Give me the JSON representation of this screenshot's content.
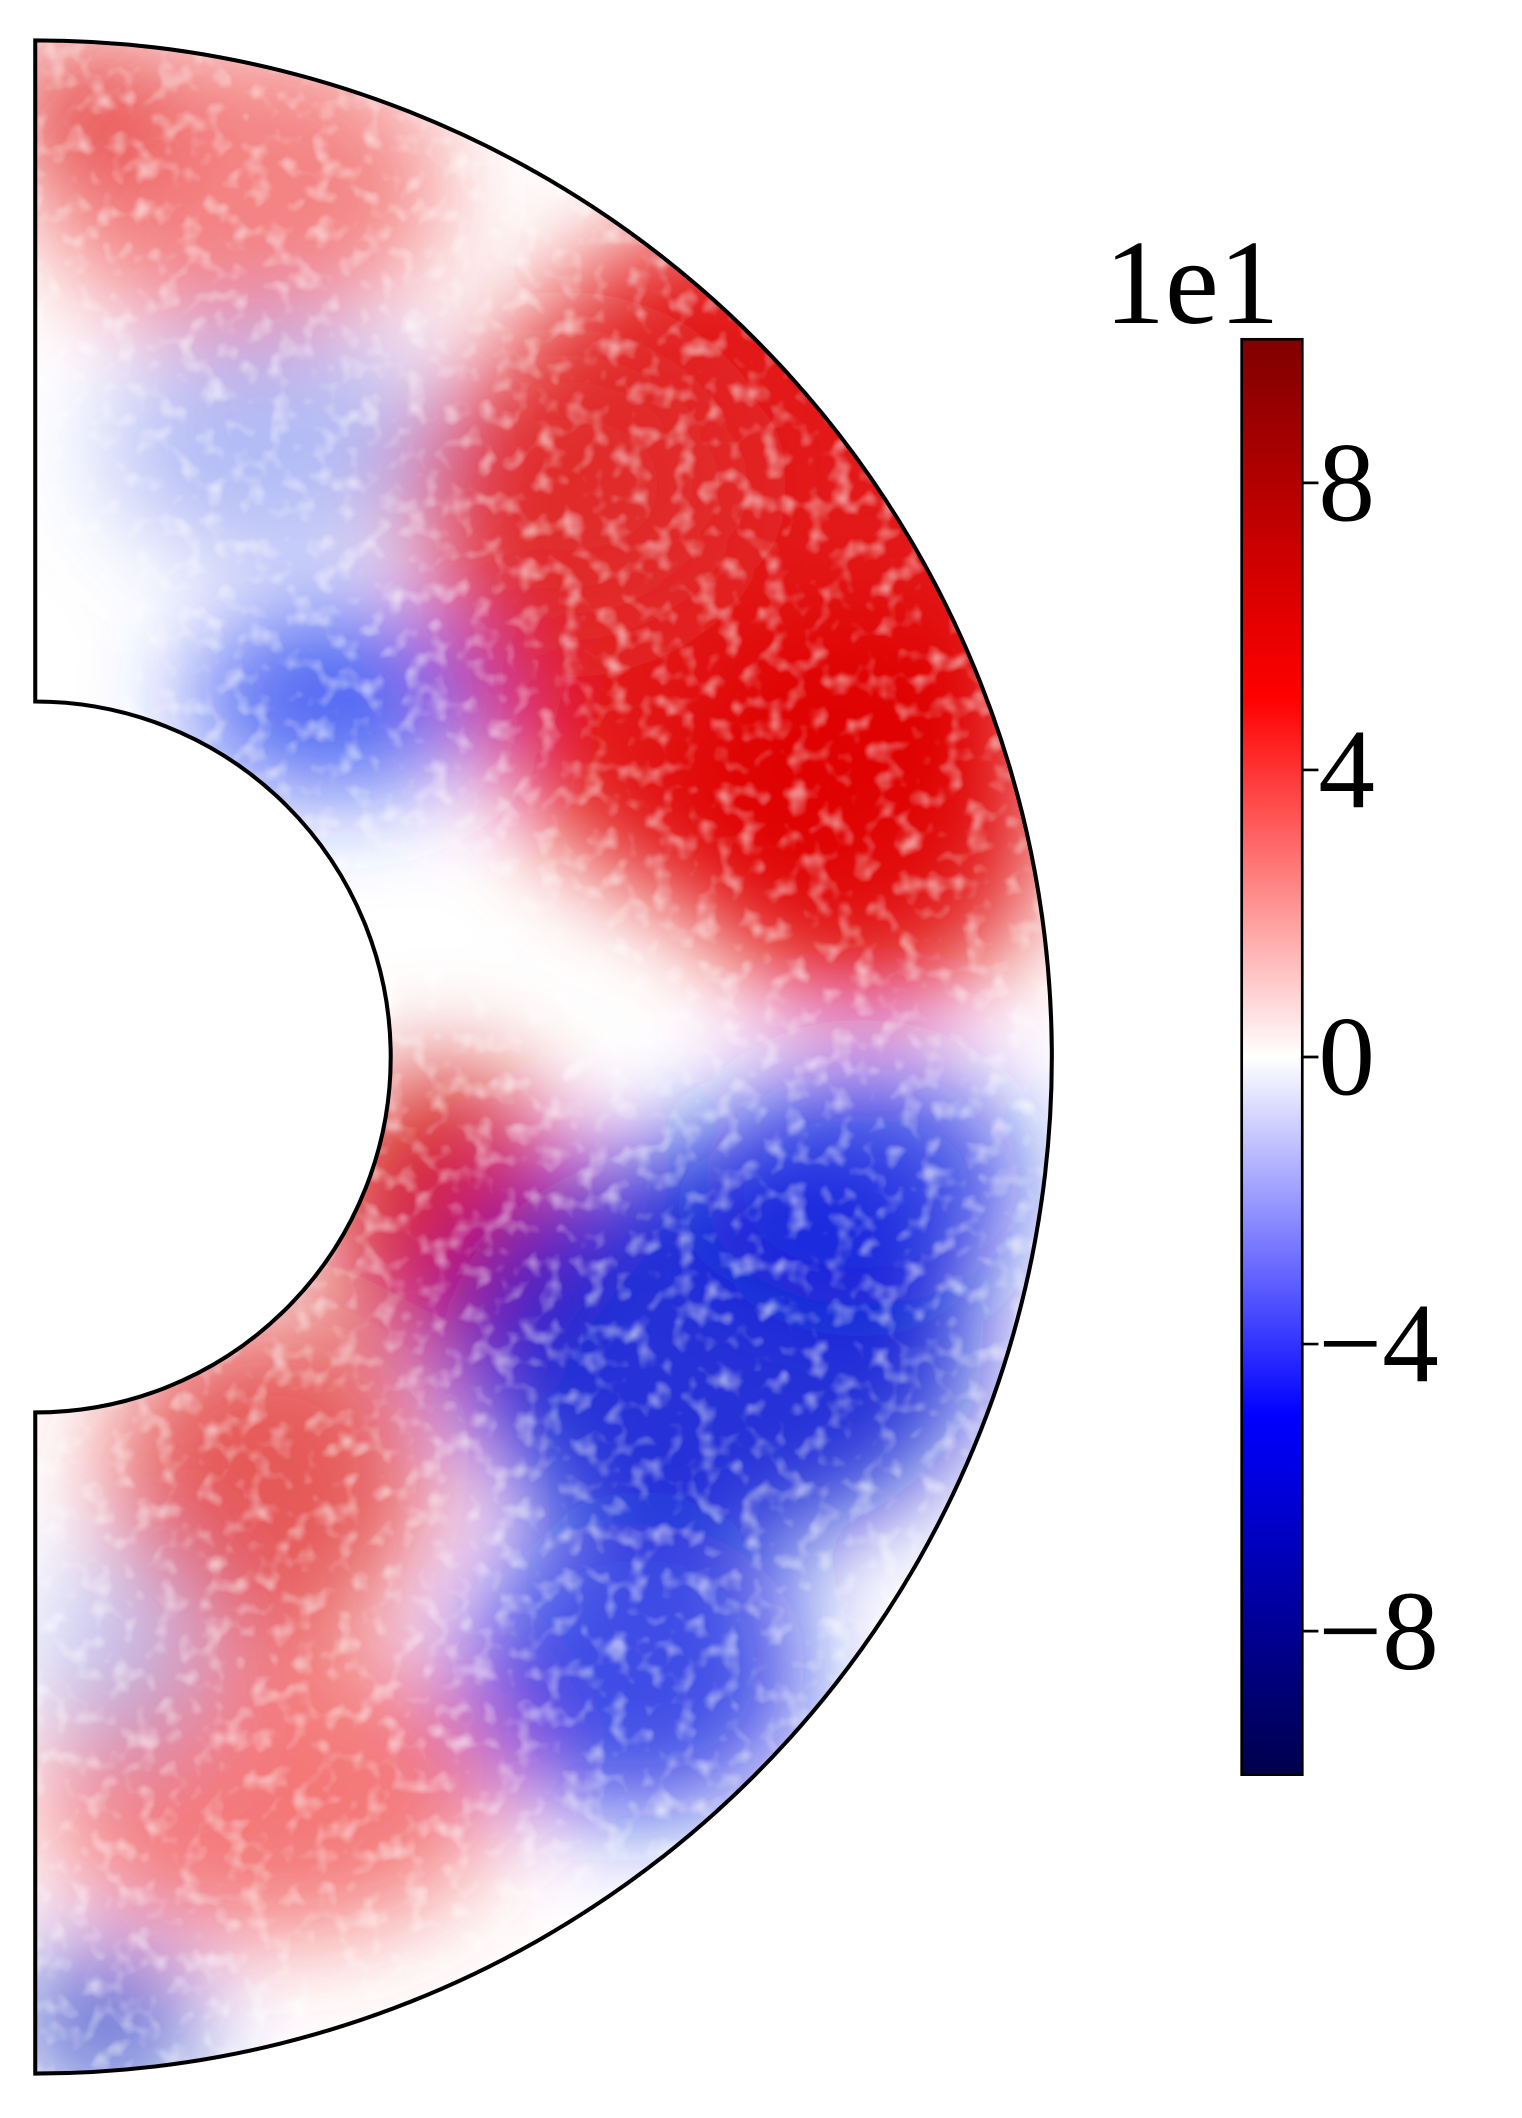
{
  "chart_data": {
    "type": "contourf",
    "cmap": "seismic",
    "clim": [
      -10,
      10
    ],
    "colorbar_ticks": [
      {
        "value": -8,
        "label": "−8"
      },
      {
        "value": -4,
        "label": "−4"
      },
      0,
      4,
      8
    ],
    "colorbar_offset_label": "1e1"
  }
}
